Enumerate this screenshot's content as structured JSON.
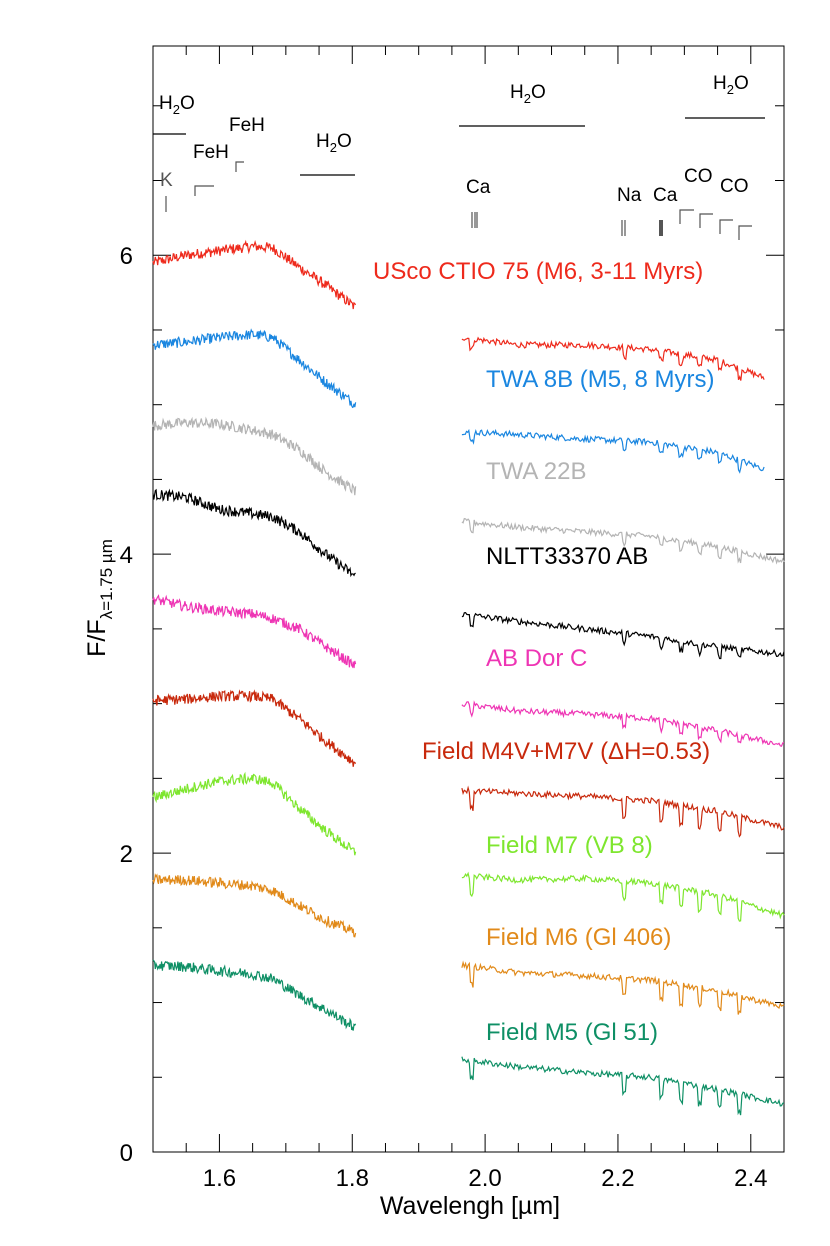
{
  "chart_data": {
    "type": "line",
    "xlabel": "Wavelengh [µm]",
    "ylabel": {
      "main": "F/F",
      "sub": "λ=1.75 µm"
    },
    "xlim": [
      1.5,
      2.45
    ],
    "ylim": [
      0,
      7.4
    ],
    "x_ticks": [
      "1.6",
      "1.8",
      "2.0",
      "2.2",
      "2.4"
    ],
    "y_ticks": [
      "0",
      "2",
      "4",
      "6"
    ],
    "grid": false,
    "segments": [
      [
        1.5,
        1.805
      ],
      [
        1.965,
        2.45
      ]
    ],
    "series": [
      {
        "name": "USco CTIO 75 (M6, 3-11 Myrs)",
        "color": "#ee2a1c",
        "h_band": [
          [
            1.5,
            5.95
          ],
          [
            1.55,
            6.0
          ],
          [
            1.6,
            6.03
          ],
          [
            1.65,
            6.06
          ],
          [
            1.68,
            6.05
          ],
          [
            1.72,
            5.92
          ],
          [
            1.76,
            5.8
          ],
          [
            1.805,
            5.65
          ]
        ],
        "k_band": [
          [
            1.965,
            5.45
          ],
          [
            2.05,
            5.4
          ],
          [
            2.15,
            5.4
          ],
          [
            2.25,
            5.37
          ],
          [
            2.35,
            5.3
          ],
          [
            2.42,
            5.18
          ]
        ]
      },
      {
        "name": "TWA 8B (M5, 8 Myrs)",
        "color": "#1a86e0",
        "h_band": [
          [
            1.5,
            5.4
          ],
          [
            1.55,
            5.42
          ],
          [
            1.6,
            5.45
          ],
          [
            1.65,
            5.47
          ],
          [
            1.68,
            5.45
          ],
          [
            1.72,
            5.3
          ],
          [
            1.76,
            5.15
          ],
          [
            1.805,
            5.0
          ]
        ],
        "k_band": [
          [
            1.965,
            4.82
          ],
          [
            2.05,
            4.8
          ],
          [
            2.15,
            4.77
          ],
          [
            2.25,
            4.75
          ],
          [
            2.35,
            4.68
          ],
          [
            2.42,
            4.57
          ]
        ]
      },
      {
        "name": "TWA 22B",
        "color": "#b4b4b4",
        "h_band": [
          [
            1.5,
            4.86
          ],
          [
            1.55,
            4.88
          ],
          [
            1.6,
            4.87
          ],
          [
            1.65,
            4.83
          ],
          [
            1.68,
            4.8
          ],
          [
            1.72,
            4.7
          ],
          [
            1.76,
            4.55
          ],
          [
            1.805,
            4.42
          ]
        ],
        "k_band": [
          [
            1.965,
            4.22
          ],
          [
            2.05,
            4.18
          ],
          [
            2.15,
            4.15
          ],
          [
            2.25,
            4.12
          ],
          [
            2.35,
            4.05
          ],
          [
            2.45,
            3.95
          ]
        ]
      },
      {
        "name": "NLTT33370 AB",
        "color": "#000000",
        "h_band": [
          [
            1.5,
            4.4
          ],
          [
            1.55,
            4.38
          ],
          [
            1.6,
            4.3
          ],
          [
            1.65,
            4.27
          ],
          [
            1.68,
            4.25
          ],
          [
            1.72,
            4.15
          ],
          [
            1.76,
            4.0
          ],
          [
            1.805,
            3.85
          ]
        ],
        "k_band": [
          [
            1.965,
            3.6
          ],
          [
            2.05,
            3.55
          ],
          [
            2.15,
            3.5
          ],
          [
            2.25,
            3.45
          ],
          [
            2.35,
            3.38
          ],
          [
            2.45,
            3.33
          ]
        ]
      },
      {
        "name": "AB Dor C",
        "color": "#ee35b4",
        "h_band": [
          [
            1.5,
            3.7
          ],
          [
            1.55,
            3.65
          ],
          [
            1.6,
            3.62
          ],
          [
            1.65,
            3.6
          ],
          [
            1.68,
            3.57
          ],
          [
            1.72,
            3.5
          ],
          [
            1.76,
            3.38
          ],
          [
            1.805,
            3.25
          ]
        ],
        "k_band": [
          [
            1.965,
            3.0
          ],
          [
            2.05,
            2.95
          ],
          [
            2.15,
            2.93
          ],
          [
            2.25,
            2.9
          ],
          [
            2.35,
            2.82
          ],
          [
            2.45,
            2.72
          ]
        ]
      },
      {
        "name": "Field M4V+M7V (ΔH=0.53)",
        "color": "#c8290c",
        "h_band": [
          [
            1.5,
            3.02
          ],
          [
            1.55,
            3.03
          ],
          [
            1.6,
            3.05
          ],
          [
            1.65,
            3.05
          ],
          [
            1.68,
            3.03
          ],
          [
            1.72,
            2.9
          ],
          [
            1.76,
            2.75
          ],
          [
            1.805,
            2.6
          ]
        ],
        "k_band": [
          [
            1.965,
            2.42
          ],
          [
            2.05,
            2.4
          ],
          [
            2.15,
            2.38
          ],
          [
            2.25,
            2.35
          ],
          [
            2.35,
            2.28
          ],
          [
            2.45,
            2.17
          ]
        ]
      },
      {
        "name": "Field M7 (VB 8)",
        "color": "#7ee62e",
        "h_band": [
          [
            1.5,
            2.37
          ],
          [
            1.55,
            2.43
          ],
          [
            1.6,
            2.48
          ],
          [
            1.65,
            2.5
          ],
          [
            1.68,
            2.47
          ],
          [
            1.72,
            2.3
          ],
          [
            1.76,
            2.15
          ],
          [
            1.805,
            2.0
          ]
        ],
        "k_band": [
          [
            1.965,
            1.85
          ],
          [
            2.05,
            1.82
          ],
          [
            2.15,
            1.83
          ],
          [
            2.25,
            1.8
          ],
          [
            2.35,
            1.72
          ],
          [
            2.45,
            1.58
          ]
        ]
      },
      {
        "name": "Field M6 (Gl 406)",
        "color": "#e18a1a",
        "h_band": [
          [
            1.5,
            1.82
          ],
          [
            1.55,
            1.82
          ],
          [
            1.6,
            1.8
          ],
          [
            1.65,
            1.78
          ],
          [
            1.68,
            1.75
          ],
          [
            1.72,
            1.65
          ],
          [
            1.76,
            1.55
          ],
          [
            1.805,
            1.47
          ]
        ],
        "k_band": [
          [
            1.965,
            1.25
          ],
          [
            2.05,
            1.2
          ],
          [
            2.15,
            1.18
          ],
          [
            2.25,
            1.15
          ],
          [
            2.35,
            1.08
          ],
          [
            2.45,
            0.97
          ]
        ]
      },
      {
        "name": "Field M5 (Gl 51)",
        "color": "#0e8f65",
        "h_band": [
          [
            1.5,
            1.25
          ],
          [
            1.55,
            1.24
          ],
          [
            1.6,
            1.21
          ],
          [
            1.65,
            1.19
          ],
          [
            1.68,
            1.16
          ],
          [
            1.72,
            1.05
          ],
          [
            1.76,
            0.95
          ],
          [
            1.805,
            0.83
          ]
        ],
        "k_band": [
          [
            1.965,
            0.62
          ],
          [
            2.05,
            0.57
          ],
          [
            2.15,
            0.53
          ],
          [
            2.25,
            0.5
          ],
          [
            2.35,
            0.42
          ],
          [
            2.45,
            0.32
          ]
        ]
      }
    ],
    "annotations": [
      {
        "text": "K",
        "x": 1.52
      },
      {
        "text": "FeH",
        "x": 1.59
      },
      {
        "text": "FeH",
        "x": 1.64
      },
      {
        "text": "H2O",
        "x": 1.55
      },
      {
        "text": "H2O",
        "x": 1.76
      },
      {
        "text": "Ca",
        "x": 1.975
      },
      {
        "text": "H2O",
        "x": 2.07
      },
      {
        "text": "Na",
        "x": 2.21
      },
      {
        "text": "Ca",
        "x": 2.265
      },
      {
        "text": "CO",
        "x": 2.32
      },
      {
        "text": "CO",
        "x": 2.385
      },
      {
        "text": "H2O",
        "x": 2.37
      }
    ]
  }
}
